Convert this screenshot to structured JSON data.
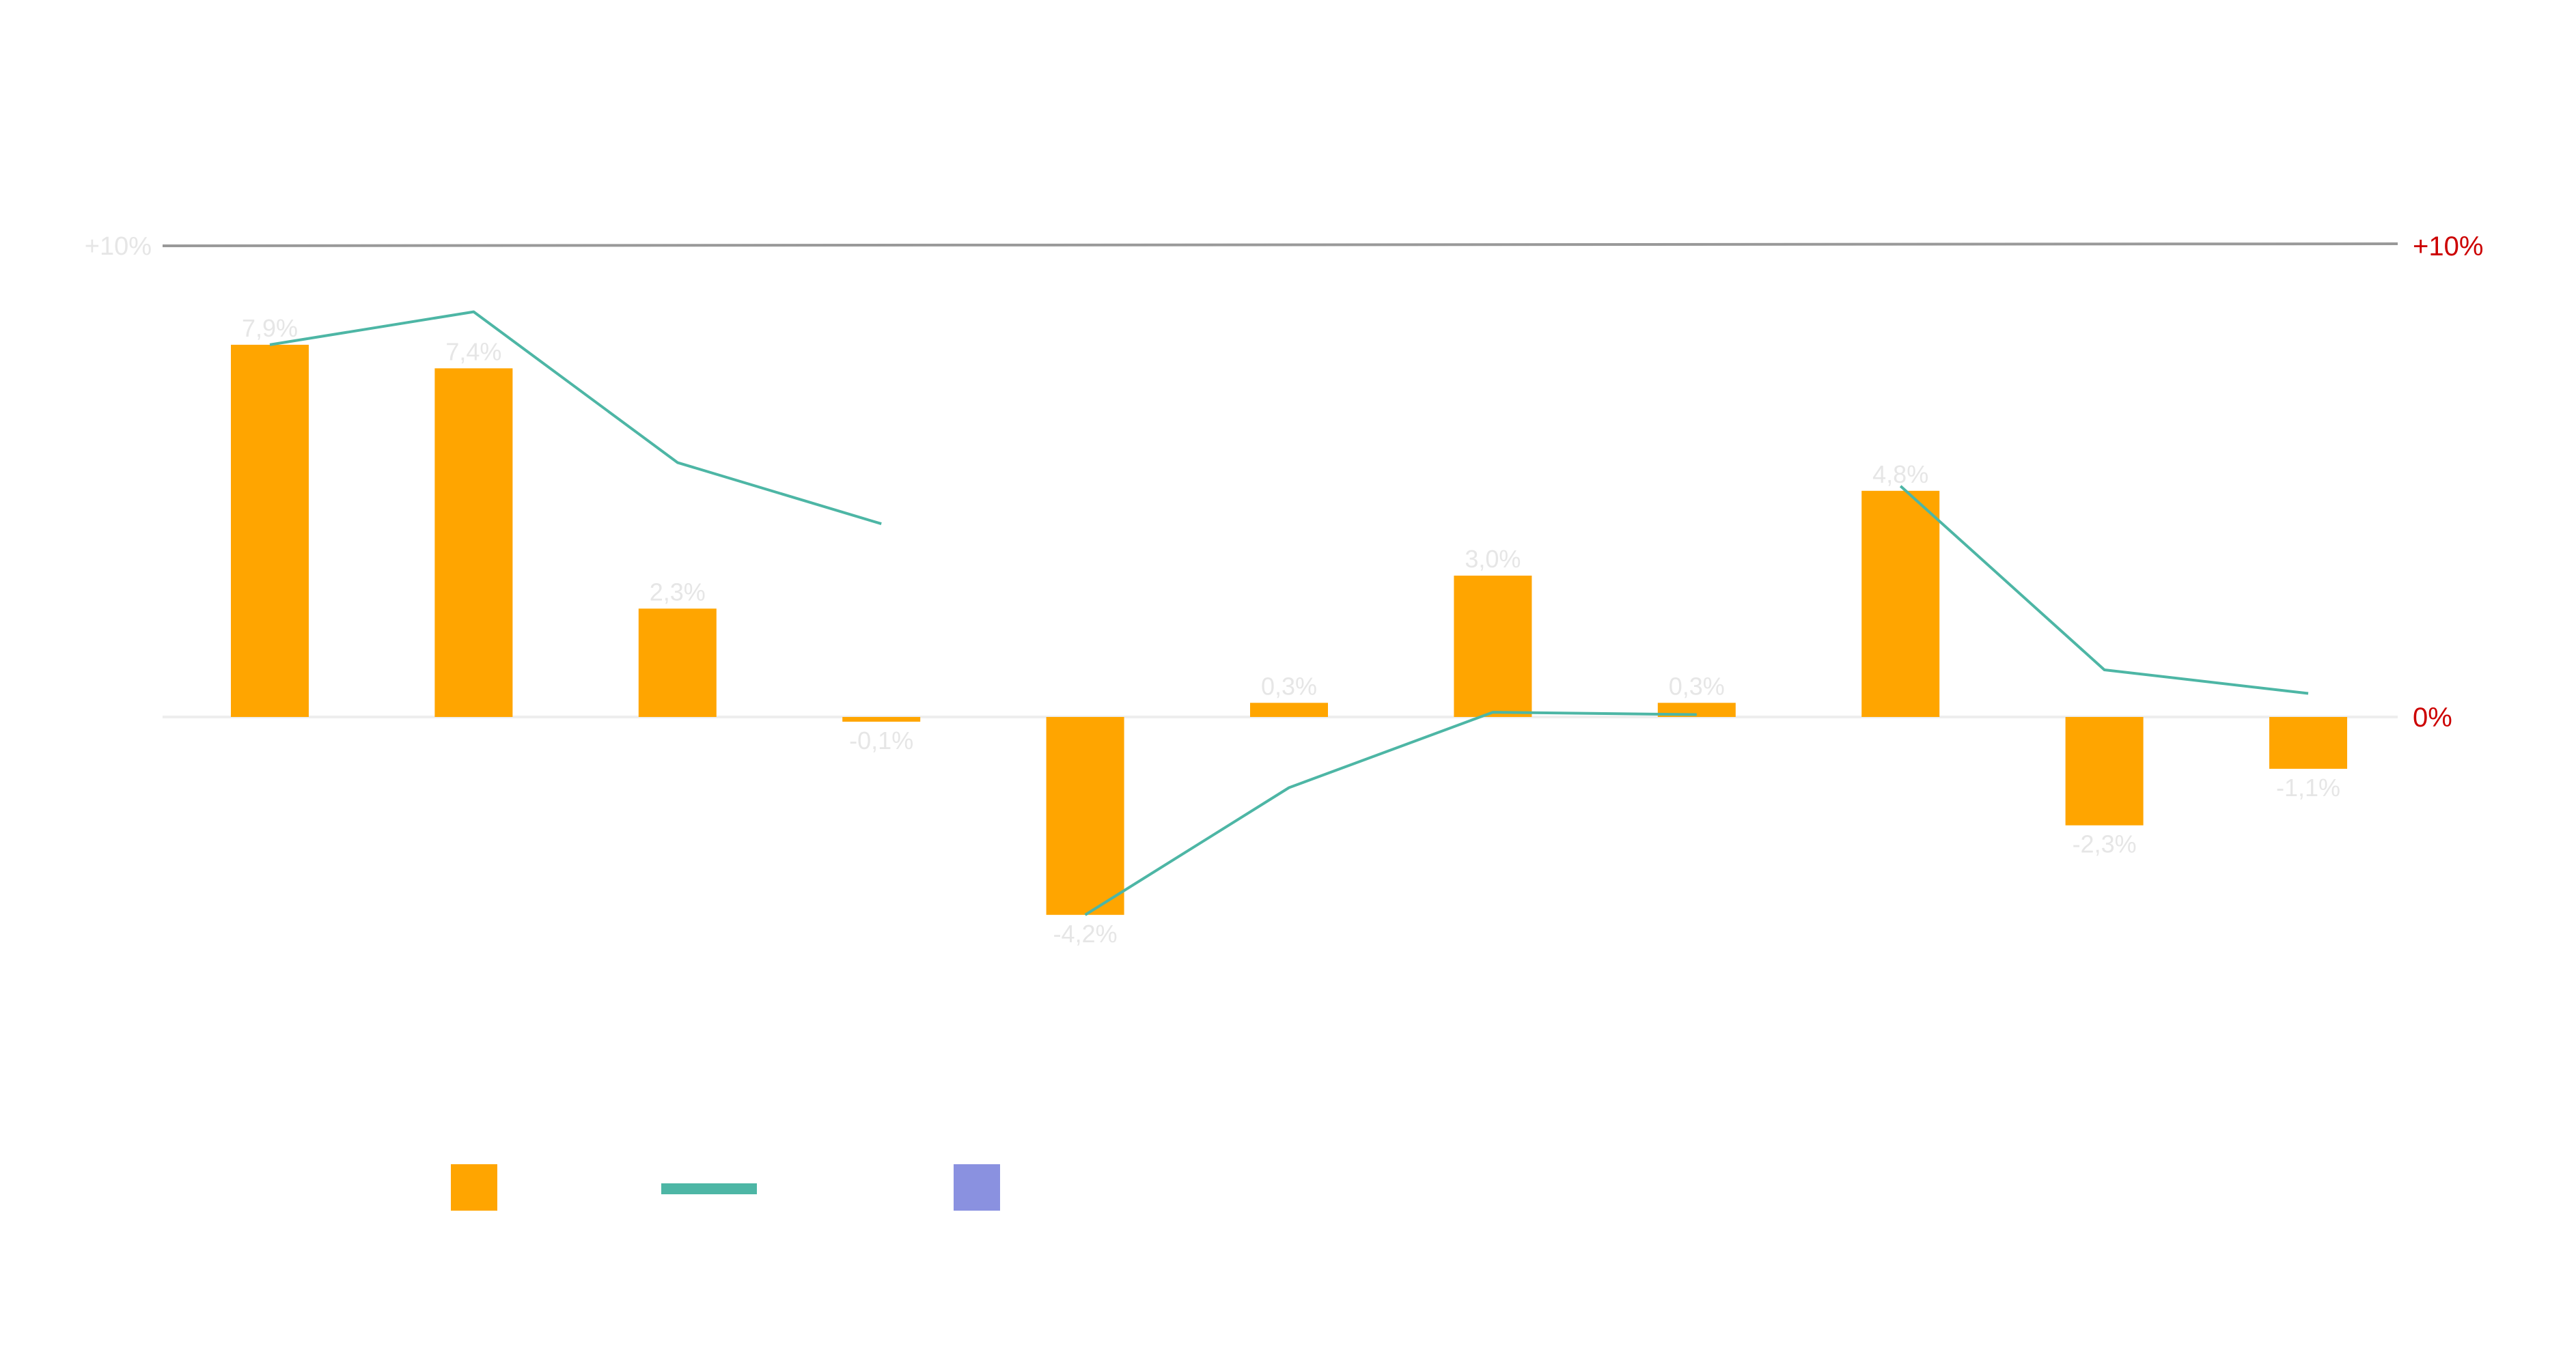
{
  "chart_data": {
    "type": "bar",
    "categories": [
      "",
      "",
      "",
      "",
      "",
      "",
      "",
      "",
      "",
      "",
      ""
    ],
    "series": [
      {
        "type": "bar",
        "color": "#FFA500",
        "values": [
          7.9,
          7.4,
          2.3,
          -0.1,
          -4.2,
          0.3,
          3.0,
          0.3,
          4.8,
          -2.3,
          -1.1
        ],
        "labels": [
          "7,9%",
          "7,4%",
          "2,3%",
          "-0,1%",
          "-4,2%",
          "0,3%",
          "3,0%",
          "0,3%",
          "4,8%",
          "-2,3%",
          "-1,1%"
        ]
      },
      {
        "type": "line",
        "color": "#4DB6A5",
        "values": [
          7.9,
          8.6,
          5.4,
          4.1,
          -4.2,
          -1.5,
          0.1,
          0.05,
          4.9,
          1.0,
          0.5
        ]
      }
    ],
    "left_axis": {
      "ticks": [
        {
          "value": 10,
          "label": "+10%"
        }
      ]
    },
    "right_axis": {
      "ticks": [
        {
          "value": 10,
          "label": "+10%"
        },
        {
          "value": 0,
          "label": "0%"
        }
      ]
    },
    "ylim": [
      -6,
      10
    ],
    "legend": {
      "position": "bottom-left",
      "items": [
        {
          "type": "bar",
          "color": "#FFA500",
          "label": ""
        },
        {
          "type": "line",
          "color": "#4DB6A5",
          "label": ""
        },
        {
          "type": "bar",
          "color": "#8A91E0",
          "label": ""
        }
      ]
    },
    "colors": {
      "reference_line": "#999999",
      "zero_line": "#EEEEEE",
      "right_axis_text": "#CC0000",
      "faint_text": "#E6E6E6"
    }
  }
}
